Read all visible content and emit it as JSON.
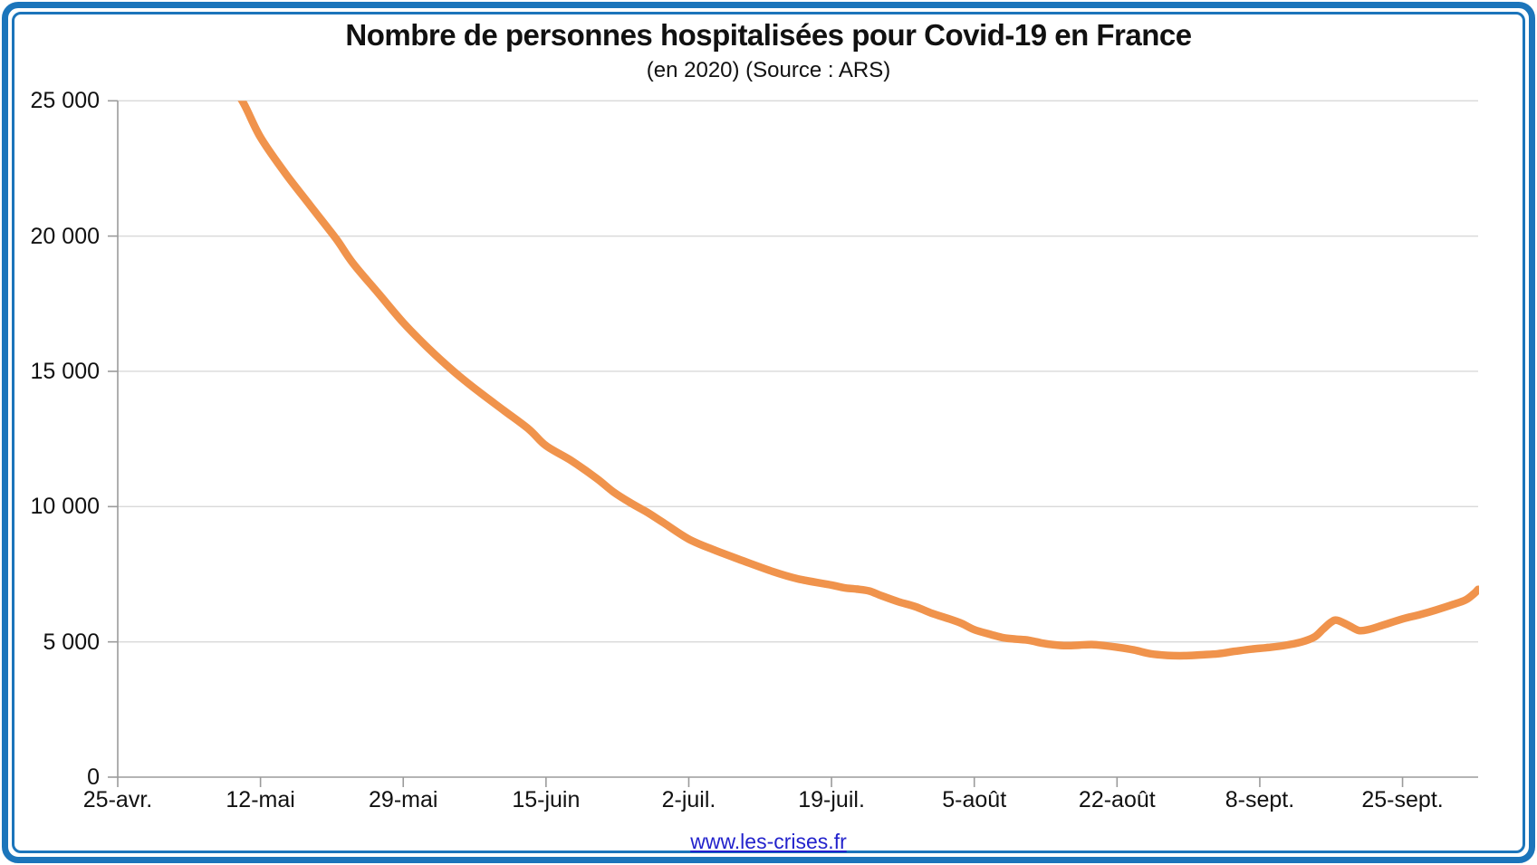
{
  "chart": {
    "title": "Nombre de personnes hospitalisées pour Covid-19 en France",
    "subtitle": "(en 2020) (Source : ARS)"
  },
  "footer": {
    "link_text": "www.les-crises.fr"
  },
  "colors": {
    "accent_line": "#F0934C",
    "frame_blue": "#1B75BB",
    "link_blue": "#2222CC",
    "grid_line": "#D9D9D9",
    "axis_line": "#9B9B9B",
    "text": "#111111"
  },
  "chart_data": {
    "type": "line",
    "title": "Nombre de personnes hospitalisées pour Covid-19 en France",
    "subtitle": "(en 2020) (Source : ARS)",
    "xlabel": "",
    "ylabel": "",
    "ylim": [
      0,
      25000
    ],
    "grid": "horizontal",
    "legend": "none",
    "y_ticks": [
      {
        "value": 0,
        "label": "0"
      },
      {
        "value": 5000,
        "label": "5 000"
      },
      {
        "value": 10000,
        "label": "10 000"
      },
      {
        "value": 15000,
        "label": "15 000"
      },
      {
        "value": 20000,
        "label": "20 000"
      },
      {
        "value": 25000,
        "label": "25 000"
      }
    ],
    "x_axis_span_days": 162,
    "x_ticks": [
      {
        "day": 0,
        "label": "25-avr."
      },
      {
        "day": 17,
        "label": "12-mai"
      },
      {
        "day": 34,
        "label": "29-mai"
      },
      {
        "day": 51,
        "label": "15-juin"
      },
      {
        "day": 68,
        "label": "2-juil."
      },
      {
        "day": 85,
        "label": "19-juil."
      },
      {
        "day": 102,
        "label": "5-août"
      },
      {
        "day": 119,
        "label": "22-août"
      },
      {
        "day": 136,
        "label": "8-sept."
      },
      {
        "day": 153,
        "label": "25-sept."
      }
    ],
    "series": [
      {
        "color": "#F0934C",
        "stroke_width": 8.5,
        "clipped_above": 25000,
        "points_day_value": [
          [
            13,
            25900
          ],
          [
            15,
            24900
          ],
          [
            17,
            23650
          ],
          [
            20,
            22300
          ],
          [
            23,
            21100
          ],
          [
            26,
            19900
          ],
          [
            28,
            19000
          ],
          [
            31,
            17900
          ],
          [
            34,
            16800
          ],
          [
            37,
            15850
          ],
          [
            40,
            15000
          ],
          [
            43,
            14250
          ],
          [
            46,
            13550
          ],
          [
            49,
            12850
          ],
          [
            51,
            12250
          ],
          [
            54,
            11700
          ],
          [
            57,
            11050
          ],
          [
            59,
            10550
          ],
          [
            61,
            10150
          ],
          [
            63,
            9800
          ],
          [
            65,
            9400
          ],
          [
            68,
            8800
          ],
          [
            71,
            8400
          ],
          [
            74,
            8050
          ],
          [
            78,
            7600
          ],
          [
            81,
            7330
          ],
          [
            85,
            7100
          ],
          [
            86.5,
            7000
          ],
          [
            88,
            6950
          ],
          [
            89.5,
            6880
          ],
          [
            91,
            6700
          ],
          [
            93,
            6480
          ],
          [
            95,
            6300
          ],
          [
            97,
            6050
          ],
          [
            99,
            5850
          ],
          [
            100.5,
            5680
          ],
          [
            102,
            5450
          ],
          [
            104,
            5270
          ],
          [
            105.5,
            5150
          ],
          [
            107,
            5100
          ],
          [
            108.5,
            5060
          ],
          [
            110,
            4960
          ],
          [
            111.5,
            4890
          ],
          [
            113,
            4860
          ],
          [
            114.5,
            4880
          ],
          [
            116,
            4900
          ],
          [
            117.5,
            4860
          ],
          [
            119,
            4800
          ],
          [
            121,
            4700
          ],
          [
            123,
            4560
          ],
          [
            125,
            4500
          ],
          [
            127,
            4490
          ],
          [
            129,
            4520
          ],
          [
            131,
            4560
          ],
          [
            133,
            4650
          ],
          [
            135,
            4730
          ],
          [
            137,
            4790
          ],
          [
            139,
            4870
          ],
          [
            141,
            5000
          ],
          [
            142.5,
            5180
          ],
          [
            143.5,
            5460
          ],
          [
            144.5,
            5730
          ],
          [
            145.2,
            5800
          ],
          [
            146.5,
            5620
          ],
          [
            147.8,
            5420
          ],
          [
            149,
            5460
          ],
          [
            150.5,
            5600
          ],
          [
            153,
            5850
          ],
          [
            155,
            6000
          ],
          [
            157,
            6180
          ],
          [
            159,
            6380
          ],
          [
            160.5,
            6550
          ],
          [
            161.5,
            6780
          ],
          [
            162,
            6940
          ]
        ]
      }
    ]
  }
}
